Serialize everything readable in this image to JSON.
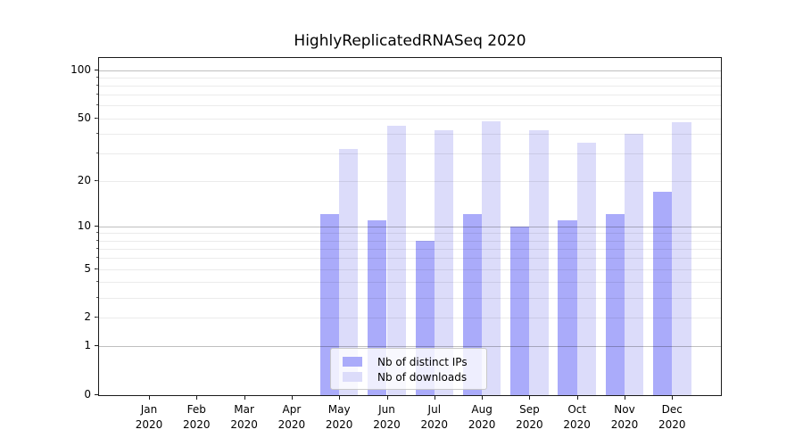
{
  "title": "HighlyReplicatedRNASeq 2020",
  "chart_data": {
    "type": "bar",
    "title": "HighlyReplicatedRNASeq 2020",
    "categories": [
      "Jan 2020",
      "Feb 2020",
      "Mar 2020",
      "Apr 2020",
      "May 2020",
      "Jun 2020",
      "Jul 2020",
      "Aug 2020",
      "Sep 2020",
      "Oct 2020",
      "Nov 2020",
      "Dec 2020"
    ],
    "series": [
      {
        "name": "Nb of distinct IPs",
        "color": "#aaabfa",
        "values": [
          0,
          0,
          0,
          0,
          12,
          11,
          8,
          12,
          10,
          11,
          12,
          17
        ]
      },
      {
        "name": "Nb of downloads",
        "color": "#dcdcfa",
        "values": [
          0,
          0,
          0,
          0,
          32,
          45,
          42,
          48,
          42,
          35,
          40,
          47
        ]
      }
    ],
    "xlabel": "",
    "ylabel": "",
    "yscale": "log1p",
    "ylim": [
      0,
      119
    ],
    "yticks": [
      0,
      1,
      2,
      5,
      10,
      20,
      50,
      100
    ],
    "major_grid_values": [
      1,
      10,
      100
    ],
    "minor_grid_values": [
      2,
      3,
      4,
      5,
      6,
      7,
      8,
      9,
      20,
      30,
      40,
      50,
      60,
      70,
      80,
      90
    ],
    "grid": true,
    "grid_above_bars": true,
    "legend_position": "lower center"
  },
  "colors": {
    "bar_distinct_ips": "#aaabfa",
    "bar_downloads": "#dcdcfa",
    "major_grid": "rgba(0,0,0,0.25)",
    "minor_grid": "rgba(0,0,0,0.08)",
    "spine": "#1a1a1a",
    "text": "#000000"
  }
}
